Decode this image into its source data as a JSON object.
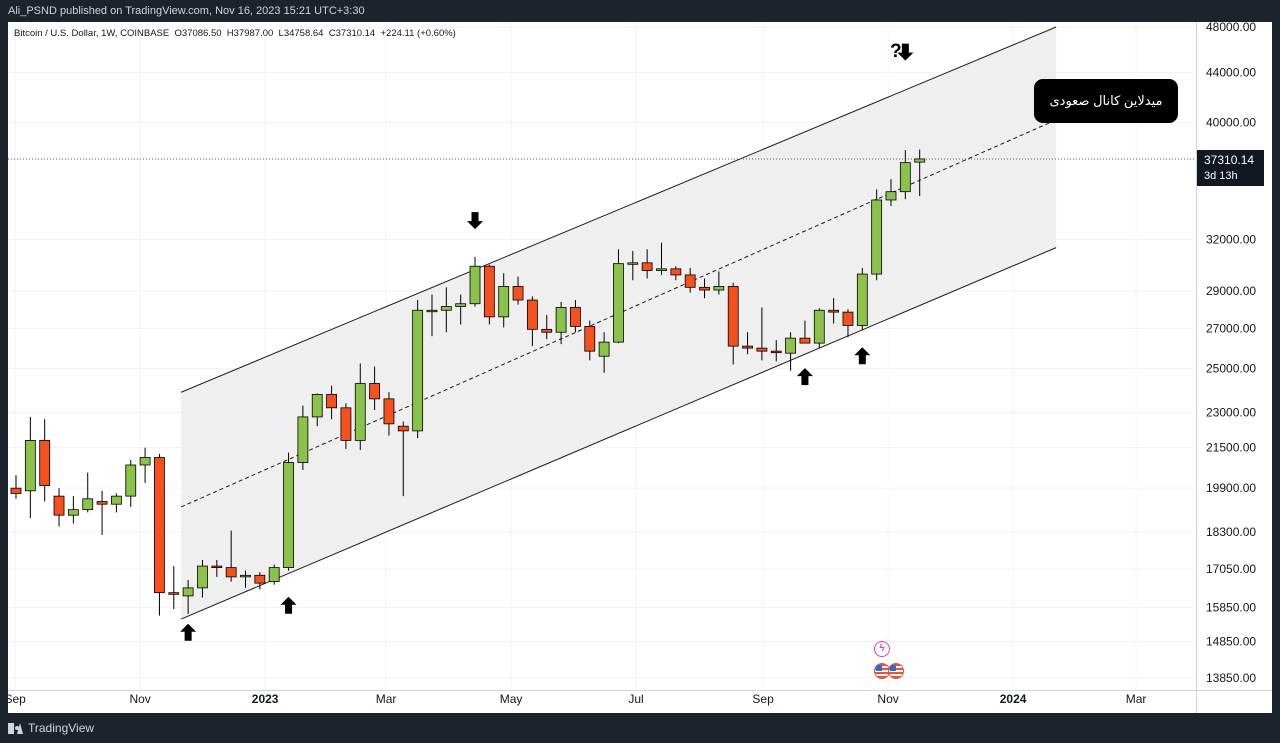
{
  "header": {
    "published_line": "Ali_PSND published on TradingView.com, Nov 16, 2023 15:21 UTC+3:30"
  },
  "symbol": {
    "info_line": "Bitcoin / U.S. Dollar, 1W, COINBASE  O37086.50  H37987.00  L34758.64  C37310.14  +224.11 (+0.60%)"
  },
  "last_price": {
    "value": "37310.14",
    "countdown": "3d 13h"
  },
  "annotation": {
    "text": "میدلاین کانال صعودی",
    "question": "?"
  },
  "footer": {
    "brand": "TradingView"
  },
  "colors": {
    "up": "#8bc34a",
    "down": "#f4511e",
    "channel_fill": "#efefef",
    "line": "#1a1a1a"
  },
  "chart_data": {
    "type": "candlestick",
    "symbol": "Bitcoin / U.S. Dollar",
    "interval": "1W",
    "exchange": "COINBASE",
    "y_scale": "log",
    "y_ticks": [
      "48000.00",
      "44000.00",
      "40000.00",
      "32000.00",
      "29000.00",
      "27000.00",
      "25000.00",
      "23000.00",
      "21500.00",
      "19900.00",
      "18300.00",
      "17050.00",
      "15850.00",
      "14850.00",
      "13850.00"
    ],
    "x_ticks": [
      "Sep",
      "Nov",
      "2023",
      "Mar",
      "May",
      "Jul",
      "Sep",
      "Nov",
      "2024",
      "Mar"
    ],
    "candles": [
      {
        "date": "2022-08-29",
        "o": 19900,
        "h": 20400,
        "l": 19500,
        "c": 19700
      },
      {
        "date": "2022-09-05",
        "o": 19800,
        "h": 22800,
        "l": 18800,
        "c": 21800
      },
      {
        "date": "2022-09-12",
        "o": 21800,
        "h": 22700,
        "l": 19400,
        "c": 20000
      },
      {
        "date": "2022-09-19",
        "o": 19600,
        "h": 19900,
        "l": 18500,
        "c": 18900
      },
      {
        "date": "2022-09-26",
        "o": 18900,
        "h": 19600,
        "l": 18600,
        "c": 19100
      },
      {
        "date": "2022-10-03",
        "o": 19100,
        "h": 20500,
        "l": 19000,
        "c": 19500
      },
      {
        "date": "2022-10-10",
        "o": 19400,
        "h": 19800,
        "l": 18200,
        "c": 19300
      },
      {
        "date": "2022-10-17",
        "o": 19300,
        "h": 19700,
        "l": 19000,
        "c": 19600
      },
      {
        "date": "2022-10-24",
        "o": 19600,
        "h": 21000,
        "l": 19200,
        "c": 20800
      },
      {
        "date": "2022-10-31",
        "o": 20800,
        "h": 21500,
        "l": 20100,
        "c": 21100
      },
      {
        "date": "2022-11-07",
        "o": 21100,
        "h": 21250,
        "l": 15600,
        "c": 16300
      },
      {
        "date": "2022-11-14",
        "o": 16300,
        "h": 17150,
        "l": 15800,
        "c": 16250
      },
      {
        "date": "2022-11-21",
        "o": 16200,
        "h": 16700,
        "l": 15650,
        "c": 16450
      },
      {
        "date": "2022-11-28",
        "o": 16450,
        "h": 17350,
        "l": 16150,
        "c": 17150
      },
      {
        "date": "2022-12-05",
        "o": 17150,
        "h": 17350,
        "l": 16800,
        "c": 17100
      },
      {
        "date": "2022-12-12",
        "o": 17100,
        "h": 18350,
        "l": 16650,
        "c": 16800
      },
      {
        "date": "2022-12-19",
        "o": 16800,
        "h": 17000,
        "l": 16450,
        "c": 16850
      },
      {
        "date": "2022-12-26",
        "o": 16850,
        "h": 16950,
        "l": 16400,
        "c": 16600
      },
      {
        "date": "2023-01-02",
        "o": 16650,
        "h": 17200,
        "l": 16550,
        "c": 17100
      },
      {
        "date": "2023-01-09",
        "o": 17100,
        "h": 21300,
        "l": 17000,
        "c": 20900
      },
      {
        "date": "2023-01-16",
        "o": 20900,
        "h": 23300,
        "l": 20600,
        "c": 22800
      },
      {
        "date": "2023-01-23",
        "o": 22800,
        "h": 23850,
        "l": 22400,
        "c": 23800
      },
      {
        "date": "2023-01-30",
        "o": 23800,
        "h": 24200,
        "l": 22700,
        "c": 23200
      },
      {
        "date": "2023-02-06",
        "o": 23200,
        "h": 23400,
        "l": 21450,
        "c": 21800
      },
      {
        "date": "2023-02-13",
        "o": 21800,
        "h": 25250,
        "l": 21400,
        "c": 24300
      },
      {
        "date": "2023-02-20",
        "o": 24300,
        "h": 25100,
        "l": 23100,
        "c": 23600
      },
      {
        "date": "2023-02-27",
        "o": 23600,
        "h": 23900,
        "l": 22000,
        "c": 22500
      },
      {
        "date": "2023-03-06",
        "o": 22400,
        "h": 22600,
        "l": 19600,
        "c": 22200
      },
      {
        "date": "2023-03-13",
        "o": 22200,
        "h": 28500,
        "l": 21900,
        "c": 27950
      },
      {
        "date": "2023-03-20",
        "o": 27950,
        "h": 28800,
        "l": 26600,
        "c": 27950
      },
      {
        "date": "2023-03-27",
        "o": 27950,
        "h": 29200,
        "l": 26800,
        "c": 28150
      },
      {
        "date": "2023-04-03",
        "o": 28150,
        "h": 28800,
        "l": 27200,
        "c": 28300
      },
      {
        "date": "2023-04-10",
        "o": 28300,
        "h": 30950,
        "l": 28150,
        "c": 30400
      },
      {
        "date": "2023-04-17",
        "o": 30400,
        "h": 30500,
        "l": 27200,
        "c": 27600
      },
      {
        "date": "2023-04-24",
        "o": 27600,
        "h": 30000,
        "l": 27050,
        "c": 29250
      },
      {
        "date": "2023-05-01",
        "o": 29250,
        "h": 29800,
        "l": 28250,
        "c": 28500
      },
      {
        "date": "2023-05-08",
        "o": 28500,
        "h": 28700,
        "l": 26100,
        "c": 26950
      },
      {
        "date": "2023-05-15",
        "o": 26950,
        "h": 27700,
        "l": 26450,
        "c": 26800
      },
      {
        "date": "2023-05-22",
        "o": 26800,
        "h": 28400,
        "l": 26200,
        "c": 28100
      },
      {
        "date": "2023-05-29",
        "o": 28100,
        "h": 28500,
        "l": 26800,
        "c": 27100
      },
      {
        "date": "2023-06-05",
        "o": 27100,
        "h": 27400,
        "l": 25400,
        "c": 25850
      },
      {
        "date": "2023-06-12",
        "o": 25600,
        "h": 26800,
        "l": 24800,
        "c": 26300
      },
      {
        "date": "2023-06-19",
        "o": 26300,
        "h": 31400,
        "l": 26250,
        "c": 30550
      },
      {
        "date": "2023-06-26",
        "o": 30550,
        "h": 31300,
        "l": 29600,
        "c": 30600
      },
      {
        "date": "2023-07-03",
        "o": 30600,
        "h": 31400,
        "l": 29700,
        "c": 30150
      },
      {
        "date": "2023-07-10",
        "o": 30150,
        "h": 31800,
        "l": 29900,
        "c": 30250
      },
      {
        "date": "2023-07-17",
        "o": 30250,
        "h": 30400,
        "l": 29600,
        "c": 29900
      },
      {
        "date": "2023-07-24",
        "o": 29900,
        "h": 30300,
        "l": 28900,
        "c": 29200
      },
      {
        "date": "2023-07-31",
        "o": 29200,
        "h": 29700,
        "l": 28600,
        "c": 29050
      },
      {
        "date": "2023-08-07",
        "o": 29050,
        "h": 30100,
        "l": 28800,
        "c": 29250
      },
      {
        "date": "2023-08-14",
        "o": 29250,
        "h": 29450,
        "l": 25200,
        "c": 26100
      },
      {
        "date": "2023-08-21",
        "o": 26100,
        "h": 26800,
        "l": 25700,
        "c": 26000
      },
      {
        "date": "2023-08-28",
        "o": 26000,
        "h": 28100,
        "l": 25400,
        "c": 25850
      },
      {
        "date": "2023-09-04",
        "o": 25850,
        "h": 26400,
        "l": 25350,
        "c": 25800
      },
      {
        "date": "2023-09-11",
        "o": 25750,
        "h": 26800,
        "l": 24900,
        "c": 26500
      },
      {
        "date": "2023-09-18",
        "o": 26500,
        "h": 27400,
        "l": 26300,
        "c": 26250
      },
      {
        "date": "2023-09-25",
        "o": 26250,
        "h": 28050,
        "l": 26000,
        "c": 27950
      },
      {
        "date": "2023-10-02",
        "o": 27950,
        "h": 28600,
        "l": 27250,
        "c": 27850
      },
      {
        "date": "2023-10-09",
        "o": 27850,
        "h": 28000,
        "l": 26550,
        "c": 27150
      },
      {
        "date": "2023-10-16",
        "o": 27150,
        "h": 30300,
        "l": 26900,
        "c": 29950
      },
      {
        "date": "2023-10-23",
        "o": 29950,
        "h": 35200,
        "l": 29600,
        "c": 34500
      },
      {
        "date": "2023-10-30",
        "o": 34500,
        "h": 35900,
        "l": 34100,
        "c": 35050
      },
      {
        "date": "2023-11-06",
        "o": 35050,
        "h": 37950,
        "l": 34550,
        "c": 37050
      },
      {
        "date": "2023-11-13",
        "o": 37086.5,
        "h": 37987,
        "l": 34758.64,
        "c": 37310.14
      }
    ],
    "channel": {
      "start_date": "2022-11-21",
      "end_date": "2024-01-22",
      "upper": [
        23900,
        48000
      ],
      "mid": [
        19200,
        40200
      ],
      "lower": [
        15500,
        31500
      ]
    },
    "arrows": [
      {
        "date": "2022-11-21",
        "dir": "up",
        "price": 15100
      },
      {
        "date": "2023-01-09",
        "dir": "up",
        "price": 15900
      },
      {
        "date": "2023-04-10",
        "dir": "down",
        "price": 33200
      },
      {
        "date": "2023-09-18",
        "dir": "up",
        "price": 24600
      },
      {
        "date": "2023-10-16",
        "dir": "up",
        "price": 25600
      },
      {
        "date": "2023-11-06",
        "dir": "down",
        "price": 45800
      }
    ],
    "last_price_value": 37310.14
  }
}
